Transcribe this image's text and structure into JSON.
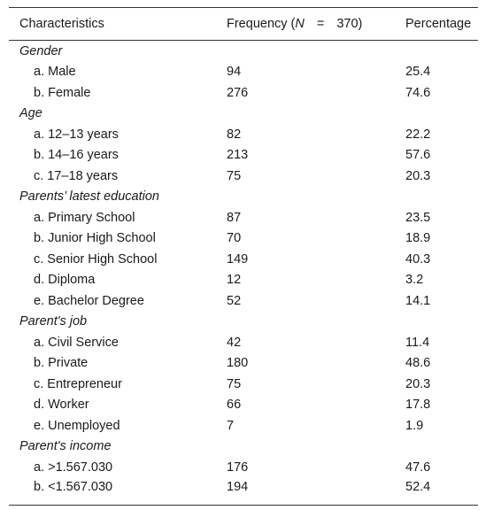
{
  "table": {
    "header": [
      "Characteristics",
      {
        "prefix": "Frequency (",
        "italic": "N",
        "equals": "=",
        "suffix": "370)"
      },
      "Percentage"
    ],
    "groups": [
      {
        "label": "Gender",
        "rows": [
          [
            "a. Male",
            94,
            25.4
          ],
          [
            "b. Female",
            276,
            74.6
          ]
        ]
      },
      {
        "label": "Age",
        "rows": [
          [
            "a. 12–13 years",
            82,
            22.2
          ],
          [
            "b. 14–16 years",
            213,
            57.6
          ],
          [
            "c. 17–18 years",
            75,
            20.3
          ]
        ]
      },
      {
        "label": "Parents’ latest education",
        "rows": [
          [
            "a. Primary School",
            87,
            23.5
          ],
          [
            "b. Junior High School",
            70,
            18.9
          ],
          [
            "c. Senior High School",
            149,
            40.3
          ],
          [
            "d. Diploma",
            12,
            3.2
          ],
          [
            "e. Bachelor Degree",
            52,
            14.1
          ]
        ]
      },
      {
        "label": "Parent's job",
        "rows": [
          [
            "a. Civil Service",
            42,
            11.4
          ],
          [
            "b. Private",
            180,
            48.6
          ],
          [
            "c. Entrepreneur",
            75,
            20.3
          ],
          [
            "d. Worker",
            66,
            17.8
          ],
          [
            "e. Unemployed",
            7,
            1.9
          ]
        ]
      },
      {
        "label": "Parent's income",
        "rows": [
          [
            "a. >1.567.030",
            176,
            47.6
          ],
          [
            "b. <1.567.030",
            194,
            52.4
          ]
        ]
      }
    ]
  }
}
